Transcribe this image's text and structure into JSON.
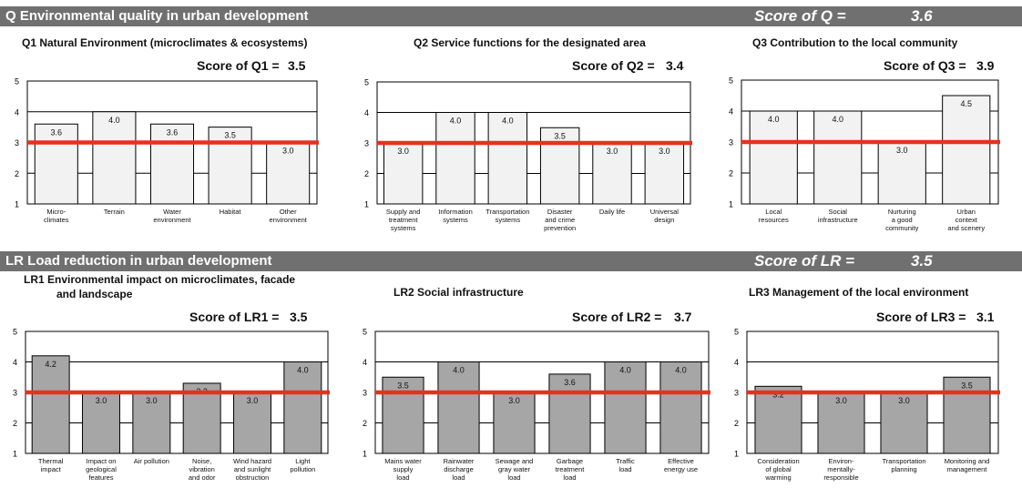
{
  "sections": [
    {
      "id": "Q",
      "title": "Q Environmental quality in urban development",
      "score_label": "Score of Q =",
      "score_value": "3.6",
      "bar_color": "#f2f2f2",
      "panels": [
        {
          "title": [
            "Q1 Natural Environment (microclimates & ecosystems)"
          ],
          "score_label": "Score of Q1 =",
          "score_value": "3.5",
          "chart_data": {
            "type": "bar",
            "ylim": [
              1,
              5
            ],
            "yticks": [
              1,
              2,
              3,
              4,
              5
            ],
            "reference_line": 3,
            "categories": [
              [
                "Micro-",
                "climates"
              ],
              [
                "Terrain"
              ],
              [
                "Water",
                "environment"
              ],
              [
                "Habitat"
              ],
              [
                "Other",
                "environment"
              ]
            ],
            "values": [
              3.6,
              4.0,
              3.6,
              3.5,
              3.0
            ],
            "labels": [
              "3.6",
              "4.0",
              "3.6",
              "3.5",
              "3.0"
            ]
          }
        },
        {
          "title": [
            "Q2 Service functions for the designated area"
          ],
          "score_label": "Score of Q2 =",
          "score_value": "3.4",
          "chart_data": {
            "type": "bar",
            "ylim": [
              1,
              5
            ],
            "yticks": [
              1,
              2,
              3,
              4,
              5
            ],
            "reference_line": 3,
            "categories": [
              [
                "Supply and",
                "treatment",
                "systems"
              ],
              [
                "Information",
                "systems"
              ],
              [
                "Transportation",
                "systems"
              ],
              [
                "Disaster",
                "and crime",
                "prevention"
              ],
              [
                "Daily life"
              ],
              [
                "Universal",
                "design"
              ]
            ],
            "values": [
              3.0,
              4.0,
              4.0,
              3.5,
              3.0,
              3.0
            ],
            "labels": [
              "3.0",
              "4.0",
              "4.0",
              "3.5",
              "3.0",
              "3.0"
            ]
          }
        },
        {
          "title": [
            "Q3 Contribution to the local community"
          ],
          "score_label": "Score of Q3 =",
          "score_value": "3.9",
          "chart_data": {
            "type": "bar",
            "ylim": [
              1,
              5
            ],
            "yticks": [
              1,
              2,
              3,
              4,
              5
            ],
            "reference_line": 3,
            "categories": [
              [
                "Local",
                "resources"
              ],
              [
                "Social",
                "infrastructure"
              ],
              [
                "Nurturing",
                "a good",
                "community"
              ],
              [
                "Urban",
                "context",
                "and scenery"
              ]
            ],
            "values": [
              4.0,
              4.0,
              3.0,
              4.5
            ],
            "labels": [
              "4.0",
              "4.0",
              "3.0",
              "4.5"
            ]
          }
        }
      ]
    },
    {
      "id": "LR",
      "title": "LR Load reduction in urban development",
      "score_label": "Score of LR =",
      "score_value": "3.5",
      "bar_color": "#a6a6a6",
      "panels": [
        {
          "title": [
            "LR1 Environmental impact on microclimates, facade",
            "and landscape"
          ],
          "score_label": "Score of LR1 =",
          "score_value": "3.5",
          "chart_data": {
            "type": "bar",
            "ylim": [
              1,
              5
            ],
            "yticks": [
              1,
              2,
              3,
              4,
              5
            ],
            "reference_line": 3,
            "categories": [
              [
                "Thermal",
                "impact"
              ],
              [
                "Impact on",
                "geological",
                "features"
              ],
              [
                "Air pollution"
              ],
              [
                "Noise,",
                "vibration",
                "and odor"
              ],
              [
                "Wind hazard",
                "and sunlight",
                "obstruction"
              ],
              [
                "Light",
                "pollution"
              ]
            ],
            "values": [
              4.2,
              3.0,
              3.0,
              3.3,
              3.0,
              4.0
            ],
            "labels": [
              "4.2",
              "3.0",
              "3.0",
              "3.3",
              "3.0",
              "4.0"
            ]
          }
        },
        {
          "title": [
            "LR2 Social infrastructure"
          ],
          "score_label": "Score of LR2 =",
          "score_value": "3.7",
          "chart_data": {
            "type": "bar",
            "ylim": [
              1,
              5
            ],
            "yticks": [
              1,
              2,
              3,
              4,
              5
            ],
            "reference_line": 3,
            "categories": [
              [
                "Mains water",
                "supply",
                "load"
              ],
              [
                "Rainwater",
                "discharge",
                "load"
              ],
              [
                "Sewage and",
                "gray water",
                "load"
              ],
              [
                "Garbage",
                "treatment",
                "load"
              ],
              [
                "Traffic",
                "load"
              ],
              [
                "Effective",
                "energy use"
              ]
            ],
            "values": [
              3.5,
              4.0,
              3.0,
              3.6,
              4.0,
              4.0
            ],
            "labels": [
              "3.5",
              "4.0",
              "3.0",
              "3.6",
              "4.0",
              "4.0"
            ]
          }
        },
        {
          "title": [
            "LR3 Management of the local environment"
          ],
          "score_label": "Score of LR3 =",
          "score_value": "3.1",
          "chart_data": {
            "type": "bar",
            "ylim": [
              1,
              5
            ],
            "yticks": [
              1,
              2,
              3,
              4,
              5
            ],
            "reference_line": 3,
            "categories": [
              [
                "Consideration",
                "of global",
                "warming"
              ],
              [
                "Environ-",
                "mentally-",
                "responsible"
              ],
              [
                "Transportation",
                "planning"
              ],
              [
                "Monitoring and",
                "management"
              ]
            ],
            "values": [
              3.2,
              3.0,
              3.0,
              3.5
            ],
            "labels": [
              "3.2",
              "3.0",
              "3.0",
              "3.5"
            ]
          }
        }
      ]
    }
  ],
  "colors": {
    "reference_line": "#e8301e",
    "band": "#707070",
    "axis": "#000000"
  }
}
